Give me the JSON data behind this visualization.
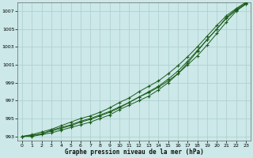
{
  "title": "Graphe pression niveau de la mer (hPa)",
  "bg_color": "#cce8e8",
  "line_color": "#1a5c1a",
  "grid_color": "#aacece",
  "x_values": [
    0,
    1,
    2,
    3,
    4,
    5,
    6,
    7,
    8,
    9,
    10,
    11,
    12,
    13,
    14,
    15,
    16,
    17,
    18,
    19,
    20,
    21,
    22,
    23
  ],
  "line1": [
    993.0,
    993.1,
    993.3,
    993.7,
    994.0,
    994.3,
    994.7,
    995.0,
    995.4,
    995.8,
    996.3,
    996.8,
    997.4,
    997.9,
    998.5,
    999.2,
    1000.0,
    1001.0,
    1002.0,
    1003.2,
    1004.5,
    1005.8,
    1007.0,
    1007.8
  ],
  "line2": [
    993.0,
    993.2,
    993.5,
    993.8,
    994.2,
    994.6,
    995.0,
    995.3,
    995.7,
    996.2,
    996.8,
    997.3,
    998.0,
    998.6,
    999.2,
    1000.0,
    1000.9,
    1001.9,
    1003.0,
    1004.2,
    1005.4,
    1006.5,
    1007.3,
    1008.0
  ],
  "line3": [
    993.0,
    993.1,
    993.3,
    993.6,
    993.9,
    994.2,
    994.6,
    994.9,
    995.3,
    995.7,
    996.2,
    996.8,
    997.4,
    998.0,
    998.6,
    999.4,
    1000.3,
    1001.4,
    1002.6,
    1003.8,
    1005.0,
    1006.2,
    1007.1,
    1007.8
  ],
  "line4": [
    993.0,
    993.0,
    993.2,
    993.4,
    993.7,
    994.0,
    994.3,
    994.6,
    995.0,
    995.4,
    996.0,
    996.5,
    997.0,
    997.5,
    998.2,
    999.0,
    1000.0,
    1001.2,
    1002.5,
    1003.8,
    1005.0,
    1006.3,
    1007.2,
    1007.9
  ],
  "ylim": [
    992.5,
    1008.0
  ],
  "xlim": [
    -0.5,
    23.5
  ],
  "yticks": [
    993,
    995,
    997,
    999,
    1001,
    1003,
    1005,
    1007
  ],
  "xticks": [
    0,
    1,
    2,
    3,
    4,
    5,
    6,
    7,
    8,
    9,
    10,
    11,
    12,
    13,
    14,
    15,
    16,
    17,
    18,
    19,
    20,
    21,
    22,
    23
  ]
}
